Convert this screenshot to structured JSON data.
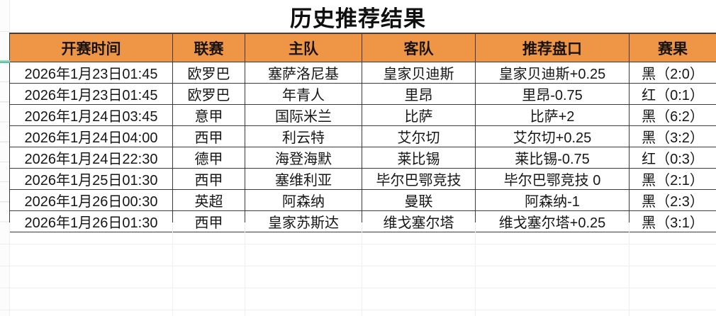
{
  "title": "历史推荐结果",
  "colors": {
    "header_bg": "#EF9546",
    "result_black": "#161616",
    "result_red": "#E0716D",
    "freeze_indicator_green": "#3FBD92",
    "table_border": "#3A3A3A"
  },
  "table": {
    "headers": [
      "开赛时间",
      "联赛",
      "主队",
      "客队",
      "推荐盘口",
      "赛果"
    ],
    "rows": [
      {
        "time": "2026年1月23日01:45",
        "league": "欧罗巴",
        "home": "塞萨洛尼基",
        "away": "皇家贝迪斯",
        "handicap": "皇家贝迪斯+0.25",
        "result": "黑（2:0）",
        "result_type": "win"
      },
      {
        "time": "2026年1月23日01:45",
        "league": "欧罗巴",
        "home": "年青人",
        "away": "里昂",
        "handicap": "里昂-0.75",
        "result": "红（0:1）",
        "result_type": "loss"
      },
      {
        "time": "2026年1月24日03:45",
        "league": "意甲",
        "home": "国际米兰",
        "away": "比萨",
        "handicap": "比萨+2",
        "result": "黑（6:2）",
        "result_type": "win"
      },
      {
        "time": "2026年1月24日04:00",
        "league": "西甲",
        "home": "利云特",
        "away": "艾尔切",
        "handicap": "艾尔切+0.25",
        "result": "黑（3:2）",
        "result_type": "win"
      },
      {
        "time": "2026年1月24日22:30",
        "league": "德甲",
        "home": "海登海默",
        "away": "莱比锡",
        "handicap": "莱比锡-0.75",
        "result": "红（0:3）",
        "result_type": "loss"
      },
      {
        "time": "2026年1月25日01:30",
        "league": "西甲",
        "home": "塞维利亚",
        "away": "毕尔巴鄂竞技",
        "handicap": "毕尔巴鄂竞技 0",
        "result": "黑（2:1）",
        "result_type": "win"
      },
      {
        "time": "2026年1月26日00:30",
        "league": "英超",
        "home": "阿森纳",
        "away": "曼联",
        "handicap": "阿森纳-1",
        "result": "黑（2:3）",
        "result_type": "win"
      },
      {
        "time": "2026年1月26日01:30",
        "league": "西甲",
        "home": "皇家苏斯达",
        "away": "维戈塞尔塔",
        "handicap": "维戈塞尔塔+0.25",
        "result": "黑（3:1）",
        "result_type": "win"
      }
    ]
  }
}
